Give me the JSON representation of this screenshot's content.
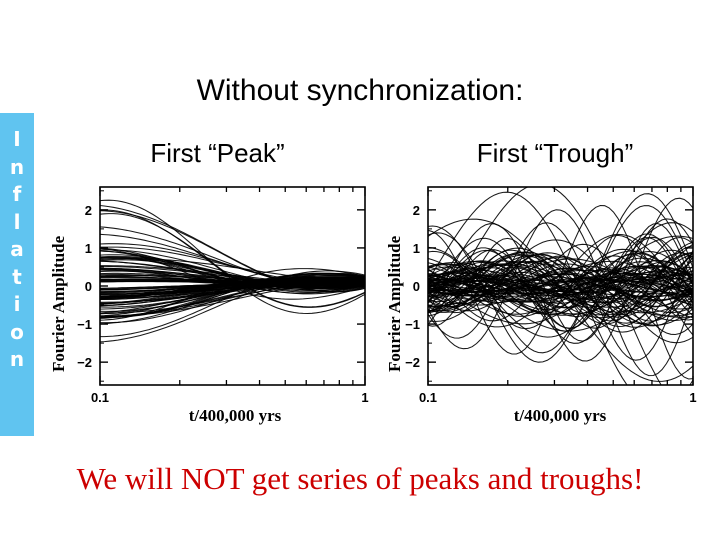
{
  "title": "Without synchronization:",
  "sidebar": {
    "letters": [
      "I",
      "n",
      "f",
      "l",
      "a",
      "t",
      "i",
      "o",
      "n"
    ],
    "color": "#60c4f0"
  },
  "bottom_note": "We will NOT get series of peaks and troughs!",
  "chart_data": [
    {
      "type": "line",
      "title": "First “Peak”",
      "xlabel": "t/400,000 yrs",
      "ylabel": "Fourier Amplitude",
      "x_scale": "log",
      "xlim": [
        0.1,
        1
      ],
      "ylim": [
        -2.6,
        2.6
      ],
      "xticks": [
        "0.1",
        "1"
      ],
      "yticks": [
        "−2",
        "−1",
        "0",
        "1",
        "2"
      ],
      "series_count": 100,
      "behavior": "amplitudes start spread and converge toward a common value at t/400,000 yrs = 1"
    },
    {
      "type": "line",
      "title": "First “Trough”",
      "xlabel": "t/400,000 yrs",
      "ylabel": "Fourier Amplitude",
      "x_scale": "log",
      "xlim": [
        0.1,
        1
      ],
      "ylim": [
        -2.6,
        2.6
      ],
      "xticks": [
        "0.1",
        "1"
      ],
      "yticks": [
        "−2",
        "−1",
        "0",
        "1",
        "2"
      ],
      "series_count": 100,
      "behavior": "amplitudes oscillate with random phases; no common convergence"
    }
  ]
}
